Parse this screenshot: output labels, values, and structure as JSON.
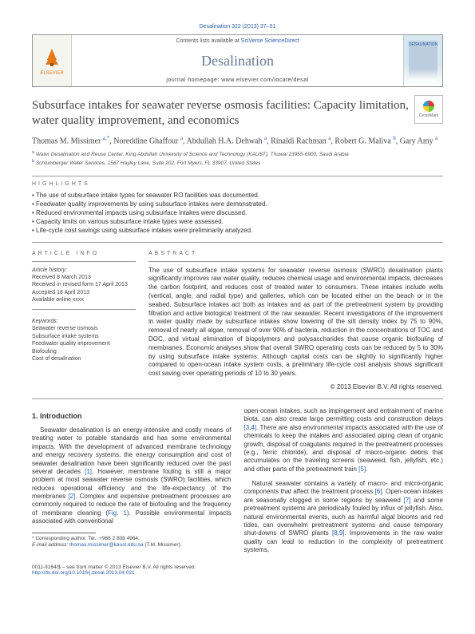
{
  "header": {
    "citation": "Desalination 322 (2013) 37–51",
    "contents_line_prefix": "Contents lists available at ",
    "contents_line_link": "SciVerse ScienceDirect",
    "journal": "Desalination",
    "homepage_prefix": "journal homepage: ",
    "homepage": "www.elsevier.com/locate/desal",
    "publisher": "ELSEVIER",
    "cover_label": "DESALINATION"
  },
  "crossmark": "CrossMark",
  "title": "Subsurface intakes for seawater reverse osmosis facilities: Capacity limitation, water quality improvement, and economics",
  "authors_html": "Thomas M. Missimer <sup>a,*</sup>, Noreddine Ghaffour <sup>a</sup>, Abdullah H.A. Dehwah <sup>a</sup>, Rinaldi Rachman <sup>a</sup>, Robert G. Maliva <sup>b</sup>, Gary Amy <sup>a</sup>",
  "affiliations": [
    {
      "sup": "a",
      "text": "Water Desalination and Reuse Center, King Abdullah University of Science and Technology (KAUST), Thuwal 23955-6900, Saudi Arabia"
    },
    {
      "sup": "b",
      "text": "Schlumberger Water Services, 1567 Hayley Lane, Suite 202, Fort Myers, FL 33907, United States"
    }
  ],
  "highlights_label": "HIGHLIGHTS",
  "highlights": [
    "The use of subsurface intake types for seawater RO facilities was documented.",
    "Feedwater quality improvements by using subsurface intakes were demonstrated.",
    "Reduced environmental impacts using subsurface intakes were discussed.",
    "Capacity limits on various subsurface intake types were assessed.",
    "Life-cycle cost savings using subsurface intakes were preliminarily analyzed."
  ],
  "article_info_label": "ARTICLE INFO",
  "article_info": {
    "history_label": "Article history:",
    "received": "Received 8 March 2013",
    "revised": "Received in revised form 17 April 2013",
    "accepted": "Accepted 18 April 2013",
    "online": "Available online xxxx",
    "keywords_label": "Keywords:",
    "keywords": [
      "Seawater reverse osmosis",
      "Subsurface intake systems",
      "Feedwater quality improvement",
      "Biofouling",
      "Cost of desalination"
    ]
  },
  "abstract_label": "ABSTRACT",
  "abstract": "The use of subsurface intake systems for seawater reverse osmosis (SWRO) desalination plants significantly improves raw water quality, reduces chemical usage and environmental impacts, decreases the carbon footprint, and reduces cost of treated water to consumers. These intakes include wells (vertical, angle, and radial type) and galleries, which can be located either on the beach or in the seabed. Subsurface intakes act both as intakes and as part of the pretreatment system by providing filtration and active biological treatment of the raw seawater. Recent investigations of the improvement in water quality made by subsurface intakes show lowering of the silt density index by 75 to 90%, removal of nearly all algae, removal of over 90% of bacteria, reduction in the concentrations of TOC and DOC, and virtual elimination of biopolymers and polysaccharides that cause organic biofouling of membranes. Economic analyses show that overall SWRO operating costs can be reduced by 5 to 30% by using subsurface intake systems. Although capital costs can be slightly to significantly higher compared to open-ocean intake system costs, a preliminary life-cycle cost analysis shows significant cost saving over operating periods of 10 to 30 years.",
  "copyright": "© 2013 Elsevier B.V. All rights reserved.",
  "intro_heading": "1. Introduction",
  "intro_para1": "Seawater desalination is an energy-intensive and costly means of treating water to potable standards and has some environmental impacts. With the development of advanced membrane technology and energy recovery systems, the energy consumption and cost of seawater desalination have been significantly reduced over the past several decades [1]. However, membrane fouling is still a major problem at most seawater reverse osmosis (SWRO) facilities, which reduces operational efficiency and the life-expectancy of the membranes [2]. Complex and expensive pretreatment processes are commonly required to reduce the rate of biofouling and the frequency of membrane cleaning (Fig. 1). Possible environmental impacts associated with conventional",
  "intro_para2": "open-ocean intakes, such as impingement and entrainment of marine biota, can also create large permitting costs and construction delays [3,4]. There are also environmental impacts associated with the use of chemicals to keep the intakes and associated piping clean of organic growth, disposal of coagulants required in the pretreatment processes (e.g., ferric chloride), and disposal of macro-organic debris that accumulates on the traveling screens (seaweed, fish, jellyfish, etc.) and other parts of the pretreatment train [5].",
  "intro_para3": "Natural seawater contains a variety of macro- and micro-organic components that affect the treatment process [6]. Open-ocean intakes are seasonally clogged in some regions by seaweed [7] and some pretreatment systems are periodically fouled by influx of jellyfish. Also, natural environmental events, such as harmful algal blooms and red tides, can overwhelm pretreatment systems and cause temporary shut-downs of SWRO plants [8,9]. Improvements in the raw water quality can lead to reduction in the complexity of pretreatment systems,",
  "corresponding": {
    "label": "* Corresponding author. Tel.: +966 2 808 4964.",
    "email_label": "E-mail address: ",
    "email": "thomas.missimer@kaust.edu.sa",
    "tail": " (T.M. Missimer)."
  },
  "footer": {
    "issn_line": "0011-9164/$ – see front matter © 2013 Elsevier B.V. All rights reserved.",
    "doi_prefix": "http://dx.doi.org/",
    "doi": "10.1016/j.desal.2013.04.021"
  },
  "ref_links": {
    "r1": "[1]",
    "r2": "[2]",
    "r34": "[3,4]",
    "r5": "[5]",
    "r6": "[6]",
    "r7": "[7]",
    "r89": "[8,9]",
    "fig1": "Fig. 1"
  }
}
